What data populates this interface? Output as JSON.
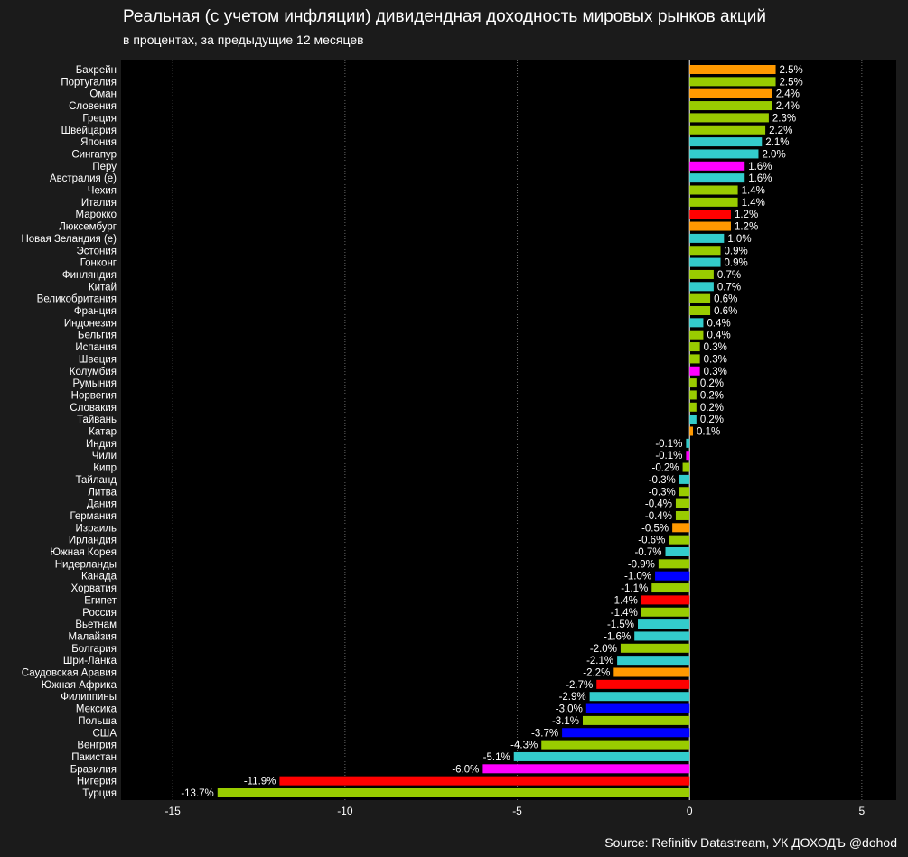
{
  "title": "Реальная (с учетом инфляции) дивидендная доходность мировых рынков акций",
  "subtitle": "в процентах, за предыдущие 12 месяцев",
  "source": "Source: Refinitiv Datastream, УК ДОХОДЪ @dohod",
  "colors": {
    "background": "#1b1b1b",
    "plot_background": "#000000",
    "grid": "#666666",
    "orange": "#ff9900",
    "green": "#99cc00",
    "cyan": "#33cccc",
    "magenta": "#ff00ff",
    "red": "#ff0000",
    "blue": "#0000ff"
  },
  "chart_data": {
    "type": "bar",
    "orientation": "horizontal",
    "xlim": [
      -16.5,
      6
    ],
    "xticks": [
      -15,
      -10,
      -5,
      0,
      5
    ],
    "grid": "vertical dotted",
    "categories": [
      "Бахрейн",
      "Португалия",
      "Оман",
      "Словения",
      "Греция",
      "Швейцария",
      "Япония",
      "Сингапур",
      "Перу",
      "Австралия (е)",
      "Чехия",
      "Италия",
      "Марокко",
      "Люксембург",
      "Новая Зеландия (е)",
      "Эстония",
      "Гонконг",
      "Финляндия",
      "Китай",
      "Великобритания",
      "Франция",
      "Индонезия",
      "Бельгия",
      "Испания",
      "Швеция",
      "Колумбия",
      "Румыния",
      "Норвегия",
      "Словакия",
      "Тайвань",
      "Катар",
      "Индия",
      "Чили",
      "Кипр",
      "Тайланд",
      "Литва",
      "Дания",
      "Германия",
      "Израиль",
      "Ирландия",
      "Южная Корея",
      "Нидерланды",
      "Канада",
      "Хорватия",
      "Египет",
      "Россия",
      "Вьетнам",
      "Малайзия",
      "Болгария",
      "Шри-Ланка",
      "Саудовская Аравия",
      "Южная Африка",
      "Филиппины",
      "Мексика",
      "Польша",
      "США",
      "Венгрия",
      "Пакистан",
      "Бразилия",
      "Нигерия",
      "Турция"
    ],
    "values": [
      2.5,
      2.5,
      2.4,
      2.4,
      2.3,
      2.2,
      2.1,
      2.0,
      1.6,
      1.6,
      1.4,
      1.4,
      1.2,
      1.2,
      1.0,
      0.9,
      0.9,
      0.7,
      0.7,
      0.6,
      0.6,
      0.4,
      0.4,
      0.3,
      0.3,
      0.3,
      0.2,
      0.2,
      0.2,
      0.2,
      0.1,
      -0.1,
      -0.1,
      -0.2,
      -0.3,
      -0.3,
      -0.4,
      -0.4,
      -0.5,
      -0.6,
      -0.7,
      -0.9,
      -1.0,
      -1.1,
      -1.4,
      -1.4,
      -1.5,
      -1.6,
      -2.0,
      -2.1,
      -2.2,
      -2.7,
      -2.9,
      -3.0,
      -3.1,
      -3.7,
      -4.3,
      -5.1,
      -6.0,
      -11.9,
      -13.7
    ],
    "labels": [
      "2.5%",
      "2.5%",
      "2.4%",
      "2.4%",
      "2.3%",
      "2.2%",
      "2.1%",
      "2.0%",
      "1.6%",
      "1.6%",
      "1.4%",
      "1.4%",
      "1.2%",
      "1.2%",
      "1.0%",
      "0.9%",
      "0.9%",
      "0.7%",
      "0.7%",
      "0.6%",
      "0.6%",
      "0.4%",
      "0.4%",
      "0.3%",
      "0.3%",
      "0.3%",
      "0.2%",
      "0.2%",
      "0.2%",
      "0.2%",
      "0.1%",
      "-0.1%",
      "-0.1%",
      "-0.2%",
      "-0.3%",
      "-0.3%",
      "-0.4%",
      "-0.4%",
      "-0.5%",
      "-0.6%",
      "-0.7%",
      "-0.9%",
      "-1.0%",
      "-1.1%",
      "-1.4%",
      "-1.4%",
      "-1.5%",
      "-1.6%",
      "-2.0%",
      "-2.1%",
      "-2.2%",
      "-2.7%",
      "-2.9%",
      "-3.0%",
      "-3.1%",
      "-3.7%",
      "-4.3%",
      "-5.1%",
      "-6.0%",
      "-11.9%",
      "-13.7%"
    ],
    "bar_colors": [
      "orange",
      "green",
      "orange",
      "green",
      "green",
      "green",
      "cyan",
      "cyan",
      "magenta",
      "cyan",
      "green",
      "green",
      "red",
      "orange",
      "cyan",
      "green",
      "cyan",
      "green",
      "cyan",
      "green",
      "green",
      "cyan",
      "green",
      "green",
      "green",
      "magenta",
      "green",
      "green",
      "green",
      "cyan",
      "orange",
      "cyan",
      "magenta",
      "green",
      "cyan",
      "green",
      "green",
      "green",
      "orange",
      "green",
      "cyan",
      "green",
      "blue",
      "green",
      "red",
      "green",
      "cyan",
      "cyan",
      "green",
      "cyan",
      "orange",
      "red",
      "cyan",
      "blue",
      "green",
      "blue",
      "green",
      "cyan",
      "magenta",
      "red",
      "green"
    ]
  }
}
